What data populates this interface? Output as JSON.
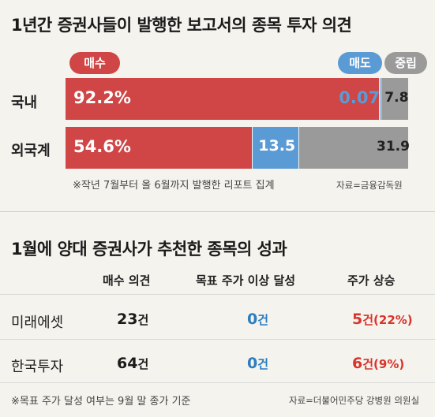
{
  "top": {
    "title": "1년간 증권사들이 발행한 보고서의 종목 투자 의견",
    "pills": {
      "buy": "매수",
      "sell": "매도",
      "neutral": "중립"
    },
    "footnote": "※작년 7월부터 올 6월까지 발행한 리포트 집계",
    "source": "자료=금융감독원"
  },
  "chart_data": {
    "type": "bar",
    "stacked": true,
    "orientation": "horizontal",
    "title": "1년간 증권사들이 발행한 보고서의 종목 투자 의견",
    "categories": [
      "국내",
      "외국계"
    ],
    "series": [
      {
        "name": "매수",
        "values": [
          92.2,
          54.6
        ],
        "labels": [
          "92.2%",
          "54.6%"
        ],
        "color": "#d04545"
      },
      {
        "name": "매도",
        "values": [
          0.07,
          13.5
        ],
        "labels": [
          "0.07",
          "13.5"
        ],
        "color": "#5b9bd5"
      },
      {
        "name": "중립",
        "values": [
          7.8,
          31.9
        ],
        "labels": [
          "7.8",
          "31.9"
        ],
        "color": "#9a9a9a"
      }
    ],
    "xlim": [
      0,
      100
    ],
    "grid": false
  },
  "bottom": {
    "title": "1월에  양대 증권사가 추천한 종목의 성과",
    "headers": [
      "매수 의견",
      "목표 주가 이상 달성",
      "주가 상승"
    ],
    "rows": [
      {
        "firm": "미래에셋",
        "buy": "23",
        "buy_unit": "건",
        "target": "0",
        "target_unit": "건",
        "rise": "5",
        "rise_unit": "건",
        "rise_pct": "(22%)"
      },
      {
        "firm": "한국투자",
        "buy": "64",
        "buy_unit": "건",
        "target": "0",
        "target_unit": "건",
        "rise": "6",
        "rise_unit": "건",
        "rise_pct": "(9%)"
      }
    ],
    "footnote": "※목표 주가 달성 여부는 9월 말 종가 기준",
    "source": "자료=더불어민주당 강병원 의원실"
  },
  "colors": {
    "buy": "#d04545",
    "sell": "#5b9bd5",
    "neutral": "#9a9a9a",
    "blue_text": "#2e7dbf",
    "red_text": "#d9342b"
  }
}
